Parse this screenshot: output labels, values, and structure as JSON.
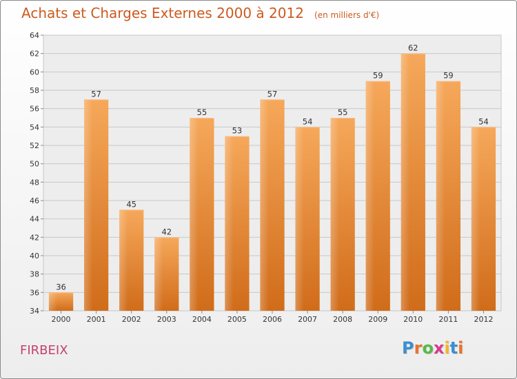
{
  "header": {
    "title": "Achats et Charges Externes 2000 à 2012",
    "subtitle": "(en milliers d'€)"
  },
  "footer": {
    "commune": "FIRBEIX",
    "logo": {
      "letters": [
        "P",
        "r",
        "o",
        "x",
        "i",
        "t",
        "i"
      ],
      "colors": [
        "#3a8fd1",
        "#e8722a",
        "#58b947",
        "#d63b8e",
        "#f2b52a",
        "#3a8fd1",
        "#e8722a"
      ]
    }
  },
  "chart_data": {
    "type": "bar",
    "categories": [
      "2000",
      "2001",
      "2002",
      "2003",
      "2004",
      "2005",
      "2006",
      "2007",
      "2008",
      "2009",
      "2010",
      "2011",
      "2012"
    ],
    "values": [
      36,
      57,
      45,
      42,
      55,
      53,
      57,
      54,
      55,
      59,
      62,
      59,
      54
    ],
    "title": "Achats et Charges Externes 2000 à 2012",
    "xlabel": "",
    "ylabel": "",
    "ylim": [
      34,
      64
    ],
    "yticks": [
      34,
      36,
      38,
      40,
      42,
      44,
      46,
      48,
      50,
      52,
      54,
      56,
      58,
      60,
      62,
      64
    ],
    "grid": true,
    "bar_color_top": "#f6a85a",
    "bar_color_bottom": "#d06c1a"
  }
}
